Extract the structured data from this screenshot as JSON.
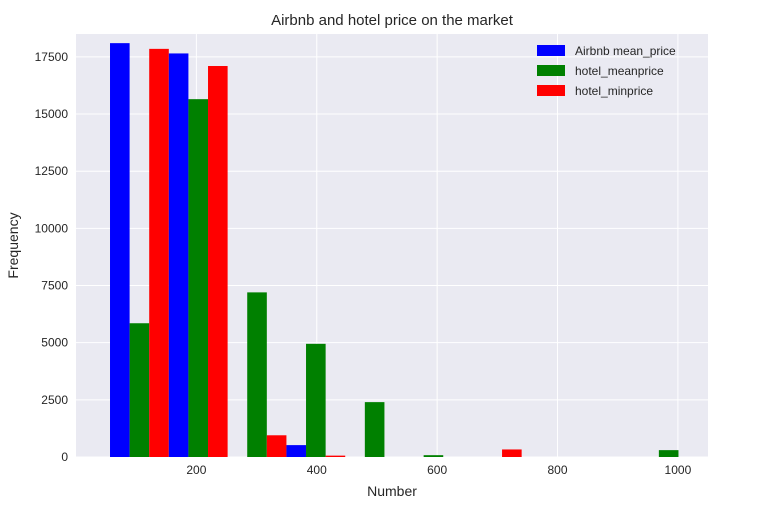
{
  "chart_data": {
    "type": "bar",
    "title": "Airbnb and hotel price on the market",
    "xlabel": "Number",
    "ylabel": "Frequency",
    "xlim": [
      0,
      1050
    ],
    "ylim": [
      0,
      18500
    ],
    "xticks": [
      200,
      400,
      600,
      800,
      1000
    ],
    "yticks": [
      0,
      2500,
      5000,
      7500,
      10000,
      12500,
      15000,
      17500
    ],
    "grid": true,
    "legend_position": "top-right",
    "bin_edges": [
      56.5,
      154.2,
      251.9,
      349.6,
      447.3,
      545.0,
      642.7,
      740.4,
      838.1,
      935.8,
      1033.5
    ],
    "series": [
      {
        "name": "Airbnb mean_price",
        "color": "#0000ff",
        "values": [
          18100,
          17650,
          0,
          520,
          0,
          0,
          0,
          0,
          0,
          0
        ]
      },
      {
        "name": "hotel_meanprice",
        "color": "#008000",
        "values": [
          5850,
          15650,
          7200,
          4950,
          2400,
          80,
          0,
          0,
          0,
          300
        ]
      },
      {
        "name": "hotel_minprice",
        "color": "#ff0000",
        "values": [
          17850,
          17100,
          950,
          60,
          0,
          0,
          330,
          0,
          0,
          0
        ]
      }
    ]
  }
}
